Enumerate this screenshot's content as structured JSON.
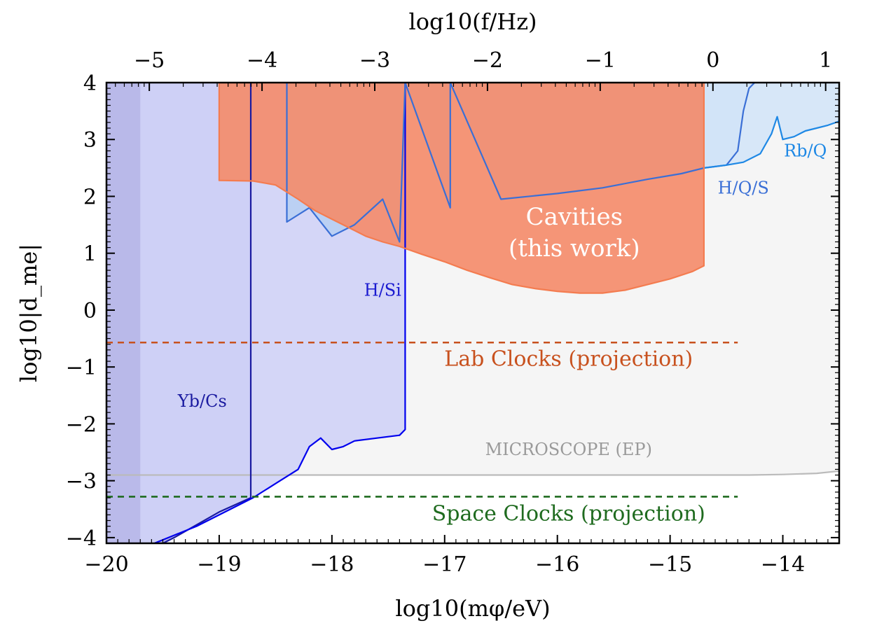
{
  "chart_data": {
    "type": "area",
    "title": "",
    "xlabel": "log10(mφ/eV)",
    "ylabel": "log10|d_me|",
    "x2label": "log10(f/Hz)",
    "xlim": [
      -20,
      -13.5
    ],
    "ylim": [
      -4.1,
      4
    ],
    "x_ticks": [
      -20,
      -19,
      -18,
      -17,
      -16,
      -15,
      -14
    ],
    "x_tick_labels": [
      "−20",
      "−19",
      "−18",
      "−17",
      "−16",
      "−15",
      "−14"
    ],
    "y_ticks": [
      -4,
      -3,
      -2,
      -1,
      0,
      1,
      2,
      3,
      4
    ],
    "y_tick_labels": [
      "−4",
      "−3",
      "−2",
      "−1",
      "0",
      "1",
      "2",
      "3",
      "4"
    ],
    "x2_ticks": [
      -5,
      -4,
      -3,
      -2,
      -1,
      0,
      1
    ],
    "x2_tick_labels": [
      "−5",
      "−4",
      "−3",
      "−2",
      "−1",
      "0",
      "1"
    ],
    "grid": false,
    "series": [
      {
        "name": "MICROSCOPE (EP)",
        "color": "#f4f4f4",
        "edge_color": "#bbbbbb",
        "label_color": "#9a9a9a",
        "x": [
          -20,
          -19,
          -18,
          -17,
          -16,
          -15,
          -14.3,
          -14,
          -13.7,
          -13.5
        ],
        "y": [
          -2.9,
          -2.9,
          -2.9,
          -2.9,
          -2.9,
          -2.9,
          -2.9,
          -2.89,
          -2.87,
          -2.83
        ]
      },
      {
        "name": "Yb/Cs",
        "color": "#b3b3e8",
        "edge_color": "#1a1aa0",
        "label_color": "#1a1aa0",
        "x": [
          -20,
          -19.4,
          -19.0,
          -18.72,
          -18.72
        ],
        "y": [
          -4.6,
          -4.0,
          -3.55,
          -3.3,
          4
        ]
      },
      {
        "name": "H/Si",
        "color": "#d0d3f7",
        "edge_color": "#0000ee",
        "label_color": "#1a1ad0",
        "x": [
          -19.7,
          -19.2,
          -18.7,
          -18.5,
          -18.3,
          -18.2,
          -18.1,
          -18.0,
          -17.9,
          -17.8,
          -17.6,
          -17.4,
          -17.35,
          -17.35
        ],
        "y": [
          -4.2,
          -3.8,
          -3.3,
          -3.05,
          -2.8,
          -2.4,
          -2.25,
          -2.45,
          -2.4,
          -2.3,
          -2.25,
          -2.2,
          -2.1,
          4
        ]
      },
      {
        "name": "H/Q/S",
        "color": "#b8cff2",
        "edge_color": "#3a6fd6",
        "label_color": "#3a6fd6",
        "x": [
          -18.4,
          -18.4,
          -18.2,
          -18.0,
          -17.8,
          -17.55,
          -17.4,
          -17.35,
          -16.95,
          -16.95,
          -16.5,
          -16.0,
          -15.6,
          -15.2,
          -14.9,
          -14.7,
          -14.5,
          -14.4,
          -14.35,
          -14.3,
          -14.25
        ],
        "y": [
          4,
          1.55,
          1.8,
          1.3,
          1.5,
          1.95,
          1.2,
          4,
          1.8,
          4,
          1.95,
          2.05,
          2.15,
          2.3,
          2.4,
          2.5,
          2.55,
          2.8,
          3.5,
          3.9,
          4
        ]
      },
      {
        "name": "Rb/Q",
        "color": "#d4e6f8",
        "edge_color": "#1e88e5",
        "label_color": "#1e88e5",
        "x": [
          -14.7,
          -14.5,
          -14.35,
          -14.2,
          -14.1,
          -14.05,
          -14.0,
          -13.9,
          -13.8,
          -13.7,
          -13.6,
          -13.5
        ],
        "y": [
          2.5,
          2.55,
          2.6,
          2.75,
          3.1,
          3.4,
          3.0,
          3.05,
          3.15,
          3.2,
          3.25,
          3.32
        ]
      },
      {
        "name": "Cavities (this work)",
        "color": "#f58b69",
        "edge_color": "#f47c50",
        "label_color": "#ffffff",
        "x": [
          -19.0,
          -19.0,
          -18.7,
          -18.5,
          -18.3,
          -18.15,
          -18.0,
          -17.85,
          -17.7,
          -17.55,
          -17.4,
          -17.2,
          -17.0,
          -16.8,
          -16.6,
          -16.4,
          -16.2,
          -16.0,
          -15.8,
          -15.6,
          -15.4,
          -15.2,
          -15.0,
          -14.8,
          -14.7,
          -14.7
        ],
        "y": [
          4,
          2.28,
          2.27,
          2.2,
          1.95,
          1.75,
          1.6,
          1.45,
          1.3,
          1.2,
          1.12,
          0.98,
          0.85,
          0.7,
          0.57,
          0.45,
          0.38,
          0.33,
          0.3,
          0.3,
          0.35,
          0.45,
          0.55,
          0.68,
          0.78,
          4
        ]
      }
    ],
    "projections": [
      {
        "name": "Lab Clocks (projection)",
        "color": "#c8511e",
        "x": [
          -20,
          -14.4
        ],
        "y": -0.57
      },
      {
        "name": "Space Clocks (projection)",
        "color": "#1f6b1f",
        "x": [
          -20,
          -14.4
        ],
        "y": -3.28
      }
    ],
    "annotations": [
      {
        "text": "Cavities",
        "x": -15.85,
        "y": 1.5,
        "color": "#ffffff"
      },
      {
        "text": "(this work)",
        "x": -15.85,
        "y": 0.95,
        "color": "#ffffff"
      },
      {
        "text": "H/Si",
        "x": -17.55,
        "y": 0.25,
        "color": "#1a1ad0"
      },
      {
        "text": "Yb/Cs",
        "x": -19.15,
        "y": -1.7,
        "color": "#1a1aa0"
      },
      {
        "text": "H/Q/S",
        "x": -14.35,
        "y": 2.05,
        "color": "#3a6fd6"
      },
      {
        "text": "Rb/Q",
        "x": -13.8,
        "y": 2.7,
        "color": "#1e88e5"
      },
      {
        "text": "MICROSCOPE (EP)",
        "x": -15.9,
        "y": -2.55,
        "color": "#9a9a9a"
      },
      {
        "text": "Lab Clocks (projection)",
        "x": -15.9,
        "y": -0.98,
        "color": "#c8511e"
      },
      {
        "text": "Space Clocks (projection)",
        "x": -15.9,
        "y": -3.7,
        "color": "#1f6b1f"
      }
    ]
  }
}
